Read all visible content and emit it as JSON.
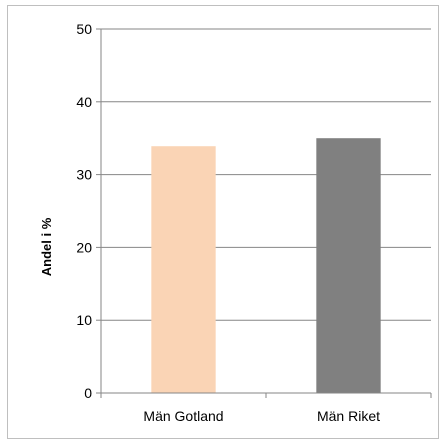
{
  "chart_data": {
    "type": "bar",
    "title": "",
    "xlabel": "",
    "ylabel": "Andel i %",
    "categories": [
      "Män Gotland",
      "Män Riket"
    ],
    "values": [
      33.9,
      35
    ],
    "ylim": [
      0,
      50
    ],
    "yticks": [
      0,
      10,
      20,
      30,
      40,
      50
    ],
    "grid": true,
    "legend": "none",
    "colors": [
      "#fad4b5",
      "#808080"
    ]
  }
}
